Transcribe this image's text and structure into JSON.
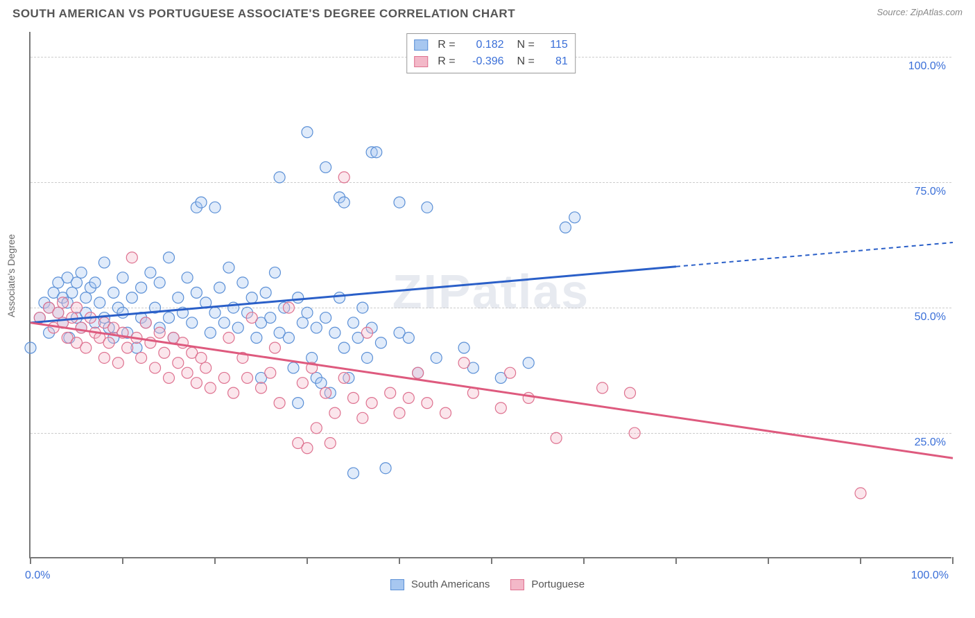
{
  "title": "SOUTH AMERICAN VS PORTUGUESE ASSOCIATE'S DEGREE CORRELATION CHART",
  "source": "Source: ZipAtlas.com",
  "watermark": "ZIPatlas",
  "y_axis_label": "Associate's Degree",
  "chart": {
    "type": "scatter",
    "background_color": "#ffffff",
    "grid_color": "#cccccc",
    "axis_color": "#777777",
    "text_color": "#555555",
    "value_color": "#3a6fd8",
    "xlim": [
      0,
      100
    ],
    "ylim": [
      0,
      105
    ],
    "yticks": [
      25,
      50,
      75,
      100
    ],
    "ytick_labels": [
      "25.0%",
      "50.0%",
      "75.0%",
      "100.0%"
    ],
    "xtick_positions": [
      0,
      10,
      20,
      30,
      40,
      50,
      60,
      70,
      80,
      90,
      100
    ],
    "xtick_labels": {
      "left": "0.0%",
      "right": "100.0%"
    },
    "marker_radius": 8,
    "marker_stroke_width": 1.2,
    "marker_fill_opacity": 0.35,
    "series": [
      {
        "key": "south_americans",
        "label": "South Americans",
        "color_fill": "#a7c7f0",
        "color_stroke": "#5a8fd6",
        "line_color": "#2a5fc8",
        "line_width": 3,
        "r_label": "R =",
        "r_value": "0.182",
        "n_label": "N =",
        "n_value": "115",
        "trend": {
          "y_at_x0": 47,
          "y_at_x100": 63,
          "solid_until_x": 70
        },
        "points": [
          [
            0,
            42
          ],
          [
            1,
            48
          ],
          [
            1.5,
            51
          ],
          [
            2,
            50
          ],
          [
            2,
            45
          ],
          [
            2.5,
            53
          ],
          [
            3,
            49
          ],
          [
            3,
            55
          ],
          [
            3.5,
            47
          ],
          [
            3.5,
            52
          ],
          [
            4,
            51
          ],
          [
            4,
            56
          ],
          [
            4.2,
            44
          ],
          [
            4.5,
            53
          ],
          [
            5,
            48
          ],
          [
            5,
            55
          ],
          [
            5.5,
            46
          ],
          [
            5.5,
            57
          ],
          [
            6,
            52
          ],
          [
            6,
            49
          ],
          [
            6.5,
            54
          ],
          [
            7,
            47
          ],
          [
            7,
            55
          ],
          [
            7.5,
            51
          ],
          [
            8,
            48
          ],
          [
            8,
            59
          ],
          [
            8.5,
            46
          ],
          [
            9,
            53
          ],
          [
            9,
            44
          ],
          [
            9.5,
            50
          ],
          [
            10,
            49
          ],
          [
            10,
            56
          ],
          [
            10.5,
            45
          ],
          [
            11,
            52
          ],
          [
            11.5,
            42
          ],
          [
            12,
            48
          ],
          [
            12,
            54
          ],
          [
            12.5,
            47
          ],
          [
            13,
            57
          ],
          [
            13.5,
            50
          ],
          [
            14,
            46
          ],
          [
            14,
            55
          ],
          [
            15,
            48
          ],
          [
            15,
            60
          ],
          [
            15.5,
            44
          ],
          [
            16,
            52
          ],
          [
            16.5,
            49
          ],
          [
            17,
            56
          ],
          [
            17.5,
            47
          ],
          [
            18,
            53
          ],
          [
            18,
            70
          ],
          [
            18.5,
            71
          ],
          [
            19,
            51
          ],
          [
            19.5,
            45
          ],
          [
            20,
            49
          ],
          [
            20,
            70
          ],
          [
            20.5,
            54
          ],
          [
            21,
            47
          ],
          [
            21.5,
            58
          ],
          [
            22,
            50
          ],
          [
            22.5,
            46
          ],
          [
            23,
            55
          ],
          [
            23.5,
            49
          ],
          [
            24,
            52
          ],
          [
            24.5,
            44
          ],
          [
            25,
            47
          ],
          [
            25,
            36
          ],
          [
            25.5,
            53
          ],
          [
            26,
            48
          ],
          [
            26.5,
            57
          ],
          [
            27,
            45
          ],
          [
            27,
            76
          ],
          [
            27.5,
            50
          ],
          [
            28,
            44
          ],
          [
            28.5,
            38
          ],
          [
            29,
            52
          ],
          [
            29,
            31
          ],
          [
            29.5,
            47
          ],
          [
            30,
            49
          ],
          [
            30,
            85
          ],
          [
            30.5,
            40
          ],
          [
            31,
            46
          ],
          [
            31,
            36
          ],
          [
            31.5,
            35
          ],
          [
            32,
            48
          ],
          [
            32,
            78
          ],
          [
            32.5,
            33
          ],
          [
            33,
            45
          ],
          [
            33.5,
            52
          ],
          [
            33.5,
            72
          ],
          [
            34,
            42
          ],
          [
            34,
            71
          ],
          [
            34.5,
            36
          ],
          [
            35,
            47
          ],
          [
            35,
            17
          ],
          [
            35.5,
            44
          ],
          [
            36,
            50
          ],
          [
            36.5,
            40
          ],
          [
            37,
            46
          ],
          [
            37,
            81
          ],
          [
            37.5,
            81
          ],
          [
            38,
            43
          ],
          [
            38.5,
            18
          ],
          [
            40,
            45
          ],
          [
            40,
            71
          ],
          [
            41,
            44
          ],
          [
            42,
            37
          ],
          [
            43,
            70
          ],
          [
            44,
            40
          ],
          [
            47,
            42
          ],
          [
            48,
            38
          ],
          [
            51,
            36
          ],
          [
            54,
            39
          ],
          [
            58,
            66
          ],
          [
            59,
            68
          ]
        ]
      },
      {
        "key": "portuguese",
        "label": "Portuguese",
        "color_fill": "#f3b8c8",
        "color_stroke": "#de718f",
        "line_color": "#de5a7e",
        "line_width": 3,
        "r_label": "R =",
        "r_value": "-0.396",
        "n_label": "N =",
        "n_value": "81",
        "trend": {
          "y_at_x0": 47,
          "y_at_x100": 20,
          "solid_until_x": 100
        },
        "points": [
          [
            1,
            48
          ],
          [
            2,
            50
          ],
          [
            2.5,
            46
          ],
          [
            3,
            49
          ],
          [
            3.5,
            47
          ],
          [
            3.5,
            51
          ],
          [
            4,
            44
          ],
          [
            4.5,
            48
          ],
          [
            5,
            43
          ],
          [
            5,
            50
          ],
          [
            5.5,
            46
          ],
          [
            6,
            42
          ],
          [
            6.5,
            48
          ],
          [
            7,
            45
          ],
          [
            7.5,
            44
          ],
          [
            8,
            47
          ],
          [
            8,
            40
          ],
          [
            8.5,
            43
          ],
          [
            9,
            46
          ],
          [
            9.5,
            39
          ],
          [
            10,
            45
          ],
          [
            10.5,
            42
          ],
          [
            11,
            60
          ],
          [
            11.5,
            44
          ],
          [
            12,
            40
          ],
          [
            12.5,
            47
          ],
          [
            13,
            43
          ],
          [
            13.5,
            38
          ],
          [
            14,
            45
          ],
          [
            14.5,
            41
          ],
          [
            15,
            36
          ],
          [
            15.5,
            44
          ],
          [
            16,
            39
          ],
          [
            16.5,
            43
          ],
          [
            17,
            37
          ],
          [
            17.5,
            41
          ],
          [
            18,
            35
          ],
          [
            18.5,
            40
          ],
          [
            19,
            38
          ],
          [
            19.5,
            34
          ],
          [
            21,
            36
          ],
          [
            21.5,
            44
          ],
          [
            22,
            33
          ],
          [
            23,
            40
          ],
          [
            23.5,
            36
          ],
          [
            24,
            48
          ],
          [
            25,
            34
          ],
          [
            26,
            37
          ],
          [
            26.5,
            42
          ],
          [
            27,
            31
          ],
          [
            28,
            50
          ],
          [
            29,
            23
          ],
          [
            29.5,
            35
          ],
          [
            30,
            22
          ],
          [
            30.5,
            38
          ],
          [
            31,
            26
          ],
          [
            32,
            33
          ],
          [
            32.5,
            23
          ],
          [
            33,
            29
          ],
          [
            34,
            36
          ],
          [
            34,
            76
          ],
          [
            35,
            32
          ],
          [
            36,
            28
          ],
          [
            36.5,
            45
          ],
          [
            37,
            31
          ],
          [
            39,
            33
          ],
          [
            40,
            29
          ],
          [
            41,
            32
          ],
          [
            42,
            37
          ],
          [
            43,
            31
          ],
          [
            45,
            29
          ],
          [
            47,
            39
          ],
          [
            48,
            33
          ],
          [
            51,
            30
          ],
          [
            52,
            37
          ],
          [
            54,
            32
          ],
          [
            57,
            24
          ],
          [
            62,
            34
          ],
          [
            65,
            33
          ],
          [
            65.5,
            25
          ],
          [
            90,
            13
          ]
        ]
      }
    ]
  }
}
